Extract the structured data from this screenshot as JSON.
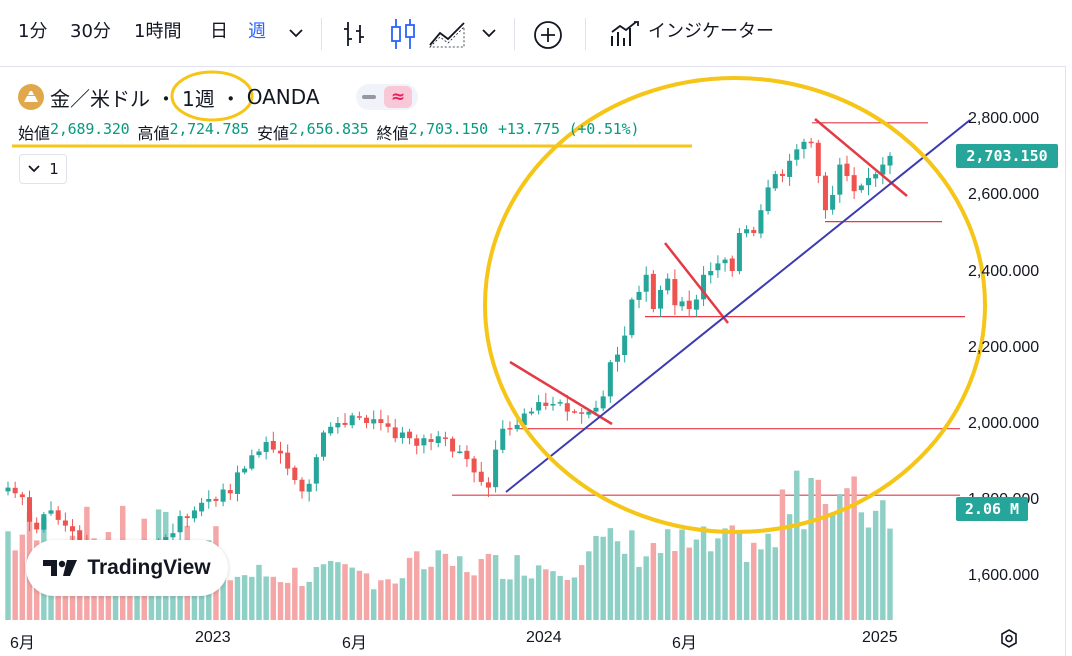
{
  "toolbar": {
    "intervals": [
      "1分",
      "30分",
      "1時間",
      "日",
      "週"
    ],
    "active_interval": "週",
    "indicators_label": "インジケーター",
    "icons": [
      "chevron-down-icon",
      "bar-chart-icon",
      "candlestick-icon",
      "area-chart-icon",
      "chevron-down-icon",
      "add-circle-icon",
      "indicators-icon"
    ]
  },
  "legend": {
    "symbol": "金／米ドル",
    "interval": "1週",
    "exchange": "OANDA",
    "open_label": "始値",
    "open_value": "2,689.320",
    "high_label": "高値",
    "high_value": "2,724.785",
    "low_label": "安値",
    "low_value": "2,656.835",
    "close_label": "終値",
    "close_value": "2,703.150",
    "change": "+13.775 (+0.51%)",
    "indicator_count": "1"
  },
  "price_axis": {
    "ticks": [
      "2,800.000",
      "2,600.000",
      "2,400.000",
      "2,200.000",
      "2,000.000",
      "1,800.000",
      "1,600.000"
    ],
    "last_price": "2,703.150",
    "volume_tag": "2.06 M"
  },
  "time_axis": {
    "ticks": [
      "6月",
      "2023",
      "6月",
      "2024",
      "6月",
      "2025"
    ]
  },
  "branding": {
    "logo_text": "TradingView"
  },
  "colors": {
    "up": "#26a69a",
    "down": "#ef5350",
    "vol_up": "#8fd0c6",
    "vol_down": "#f4a7a6",
    "annotation_red": "#e53945",
    "trendline": "#3d3bb0",
    "highlight": "#f5c518",
    "accent": "#2962ff"
  },
  "chart_data": {
    "type": "candlestick",
    "symbol": "金／米ドル",
    "timeframe": "1週",
    "ylim": [
      1500,
      2870
    ],
    "x_ticks": [
      "6月",
      "2023",
      "6月",
      "2024",
      "6月",
      "2025"
    ],
    "last_close": 2703.15,
    "series": [
      {
        "name": "weekly_close",
        "start": "2022-06",
        "values": [
          1830,
          1815,
          1805,
          1740,
          1720,
          1760,
          1770,
          1745,
          1730,
          1715,
          1690,
          1680,
          1665,
          1645,
          1640,
          1670,
          1650,
          1630,
          1655,
          1640,
          1645,
          1680,
          1700,
          1710,
          1755,
          1750,
          1770,
          1790,
          1800,
          1795,
          1825,
          1815,
          1870,
          1880,
          1915,
          1925,
          1950,
          1930,
          1920,
          1880,
          1850,
          1820,
          1840,
          1910,
          1975,
          1990,
          2000,
          1995,
          2020,
          2015,
          2000,
          2010,
          2000,
          1990,
          1960,
          1975,
          1960,
          1940,
          1960,
          1950,
          1965,
          1960,
          1925,
          1925,
          1905,
          1870,
          1845,
          1830,
          1930,
          1985,
          1985,
          1995,
          2025,
          2030,
          2055,
          2045,
          2050,
          2055,
          2030,
          2030,
          2025,
          2030,
          2040,
          2070,
          2160,
          2180,
          2230,
          2325,
          2345,
          2390,
          2300,
          2350,
          2380,
          2310,
          2320,
          2300,
          2325,
          2390,
          2400,
          2420,
          2430,
          2400,
          2500,
          2510,
          2500,
          2560,
          2620,
          2655,
          2650,
          2690,
          2720,
          2740,
          2740,
          2650,
          2560,
          2600,
          2680,
          2650,
          2610,
          2625,
          2645,
          2655,
          2680,
          2703
        ]
      },
      {
        "name": "volume",
        "note": "relative bar heights, larger near 2024-10 to 2024-12",
        "max_label": "2.06 M"
      }
    ],
    "annotations": [
      {
        "type": "ellipse",
        "color": "highlight",
        "description": "circled 2024 rally region"
      },
      {
        "type": "trendline",
        "color": "trendline",
        "from": {
          "date": "2023-12",
          "price": 1810
        },
        "to": {
          "date": "2025-04",
          "price": 2790
        }
      },
      {
        "type": "hline",
        "price": 2790
      },
      {
        "type": "hline",
        "price": 2530
      },
      {
        "type": "hline",
        "price": 2280
      },
      {
        "type": "hline",
        "price": 1985
      },
      {
        "type": "hline",
        "price": 1810
      }
    ]
  }
}
